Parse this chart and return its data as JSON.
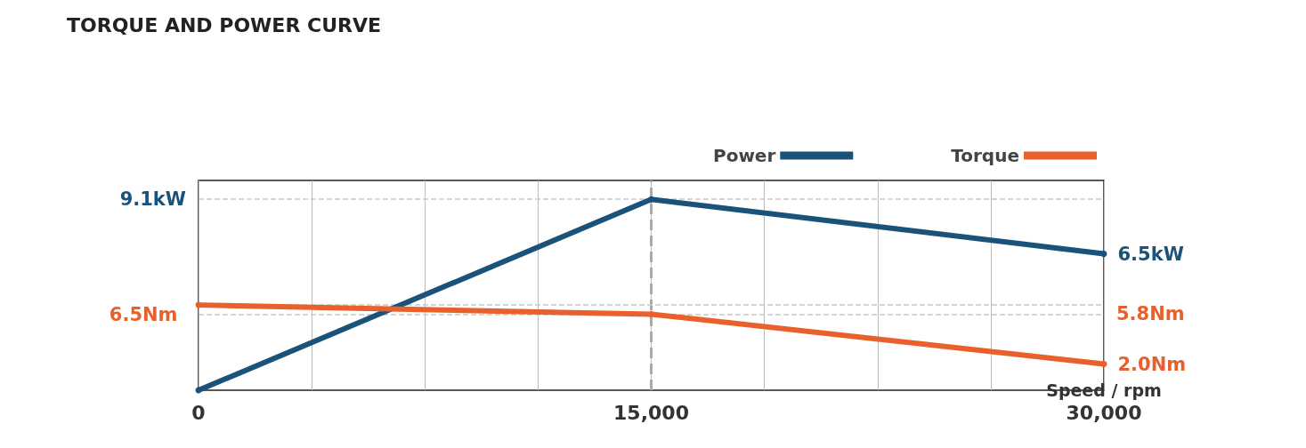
{
  "chart_data": {
    "type": "line",
    "title": "TORQUE AND POWER CURVE",
    "xlabel": "Speed / rpm",
    "x": [
      0,
      15000,
      30000
    ],
    "xlim": [
      0,
      30000
    ],
    "ylim": [
      0,
      10
    ],
    "y2lim": [
      0,
      16
    ],
    "xticks": [
      0,
      {
        "value": 3750,
        "label": null
      },
      {
        "value": 7500,
        "label": null
      },
      {
        "value": 11250,
        "label": null
      },
      {
        "value": 15000,
        "label": "15,000"
      },
      {
        "value": 18750,
        "label": null
      },
      {
        "value": 22500,
        "label": null
      },
      {
        "value": 26250,
        "label": null
      },
      {
        "value": 30000,
        "label": "30,000"
      }
    ],
    "series": [
      {
        "name": "Power",
        "color": "#1a5279",
        "values": [
          0,
          9.1,
          6.5
        ],
        "value_labels": [
          null,
          null,
          "6.5kW"
        ]
      },
      {
        "name": "Torque",
        "color": "#e8612c",
        "axis": "y2",
        "values": [
          6.5,
          5.8,
          2.0
        ],
        "value_labels": [
          "6.5Nm",
          null,
          "2.0Nm"
        ]
      }
    ],
    "ref_lines": [
      {
        "axis": "y",
        "value": 9.1,
        "label": "9.1kW",
        "line_style": "dashed"
      },
      {
        "axis": "y2",
        "value": 6.5,
        "label": null,
        "line_style": "dashed"
      },
      {
        "axis": "y2",
        "value": 5.8,
        "label": "5.8Nm",
        "line_style": "dashed"
      },
      {
        "axis": "x",
        "value": 15000,
        "label": null,
        "line_style": "dashed"
      }
    ],
    "grid": "x",
    "legend": "top right",
    "tick_labels": "x",
    "marker": "circle",
    "line_style": "solid"
  }
}
